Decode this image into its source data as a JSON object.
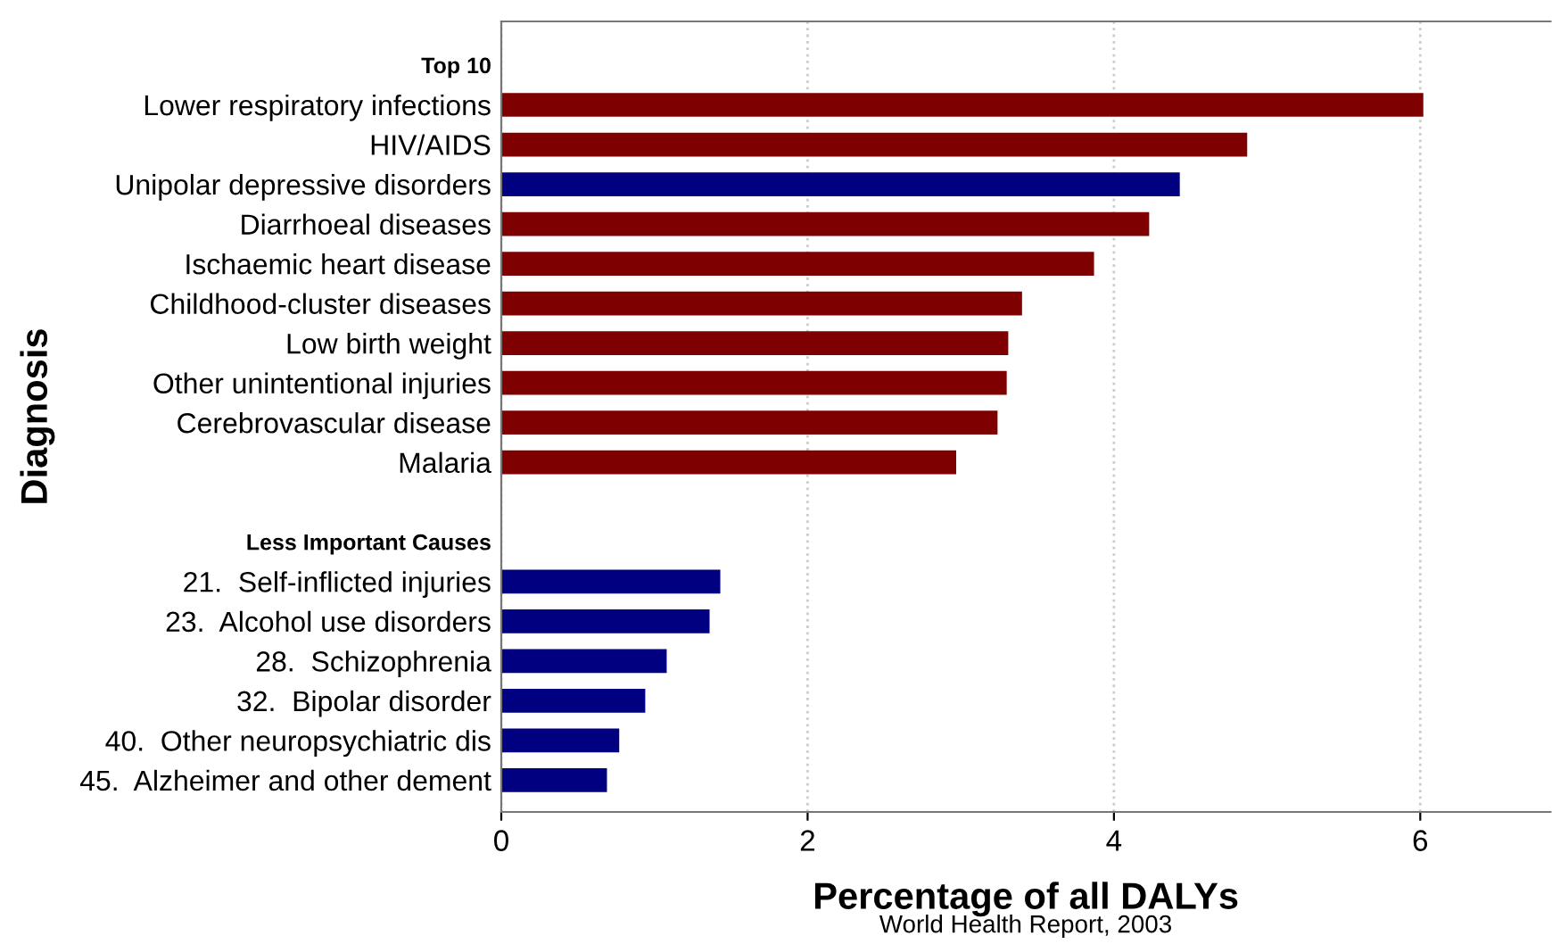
{
  "chart_data": {
    "type": "bar",
    "orientation": "horizontal",
    "categories": [
      "Top 10",
      "Lower respiratory infections",
      "HIV/AIDS",
      "Unipolar depressive disorders",
      "Diarrhoeal diseases",
      "Ischaemic heart disease",
      "Childhood-cluster diseases",
      "Low birth weight",
      "Other unintentional injuries",
      "Cerebrovascular disease",
      "Malaria",
      null,
      "Less Important Causes",
      "21.  Self-inflicted injuries",
      "23.  Alcohol use disorders",
      "28.  Schizophrenia",
      "32.  Bipolar disorder",
      "40.  Other neuropsychiatric dis",
      "45.  Alzheimer and other dement"
    ],
    "values": [
      null,
      6.02,
      4.87,
      4.43,
      4.23,
      3.87,
      3.4,
      3.31,
      3.3,
      3.24,
      2.97,
      null,
      null,
      1.43,
      1.36,
      1.08,
      0.94,
      0.77,
      0.69
    ],
    "colors": [
      null,
      "#7f0000",
      "#7f0000",
      "#000080",
      "#7f0000",
      "#7f0000",
      "#7f0000",
      "#7f0000",
      "#7f0000",
      "#7f0000",
      "#7f0000",
      null,
      null,
      "#000080",
      "#000080",
      "#000080",
      "#000080",
      "#000080",
      "#000080"
    ],
    "xlim": [
      0,
      6.85
    ],
    "xticks": [
      0,
      2,
      4,
      6
    ],
    "grid": "x",
    "xlabel": "Percentage of all DALYs",
    "ylabel": "Diagnosis",
    "annotations": [
      "World Health Report, 2003"
    ]
  }
}
